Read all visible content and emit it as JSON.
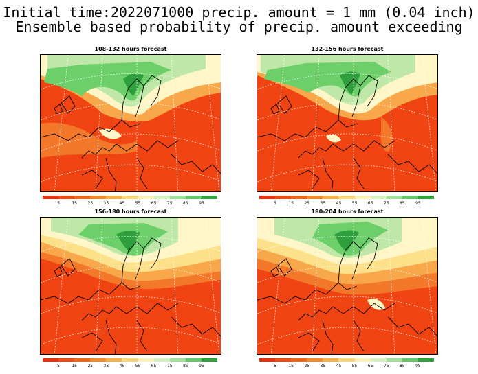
{
  "title_line1": "Initial time:2022071000 precip. amount = 1 mm (0.04 inch)",
  "title_line2": "Ensemble based probability of precip. amount exceeding",
  "panels": [
    {
      "title": "108-132 hours forecast"
    },
    {
      "title": "132-156 hours forecast"
    },
    {
      "title": "156-180 hours forecast"
    },
    {
      "title": "180-204 hours forecast"
    }
  ],
  "colorbar": {
    "labels": [
      "5",
      "15",
      "25",
      "35",
      "45",
      "55",
      "65",
      "75",
      "85",
      "95"
    ],
    "colors": [
      "#e8300e",
      "#ee4a12",
      "#f2661a",
      "#f58a2b",
      "#f9b04a",
      "#fcd77a",
      "#fdf3b8",
      "#d6f2c2",
      "#9ee09a",
      "#64c868",
      "#2fa33a"
    ]
  },
  "colors": {
    "red": "#f04412",
    "orange": "#f3782a",
    "light_orange": "#f8a84a",
    "yellow": "#fde08a",
    "cream": "#fff6c8",
    "light_green": "#bfe8a8",
    "green": "#6ccf6a",
    "dark_green": "#2f9e3c"
  }
}
